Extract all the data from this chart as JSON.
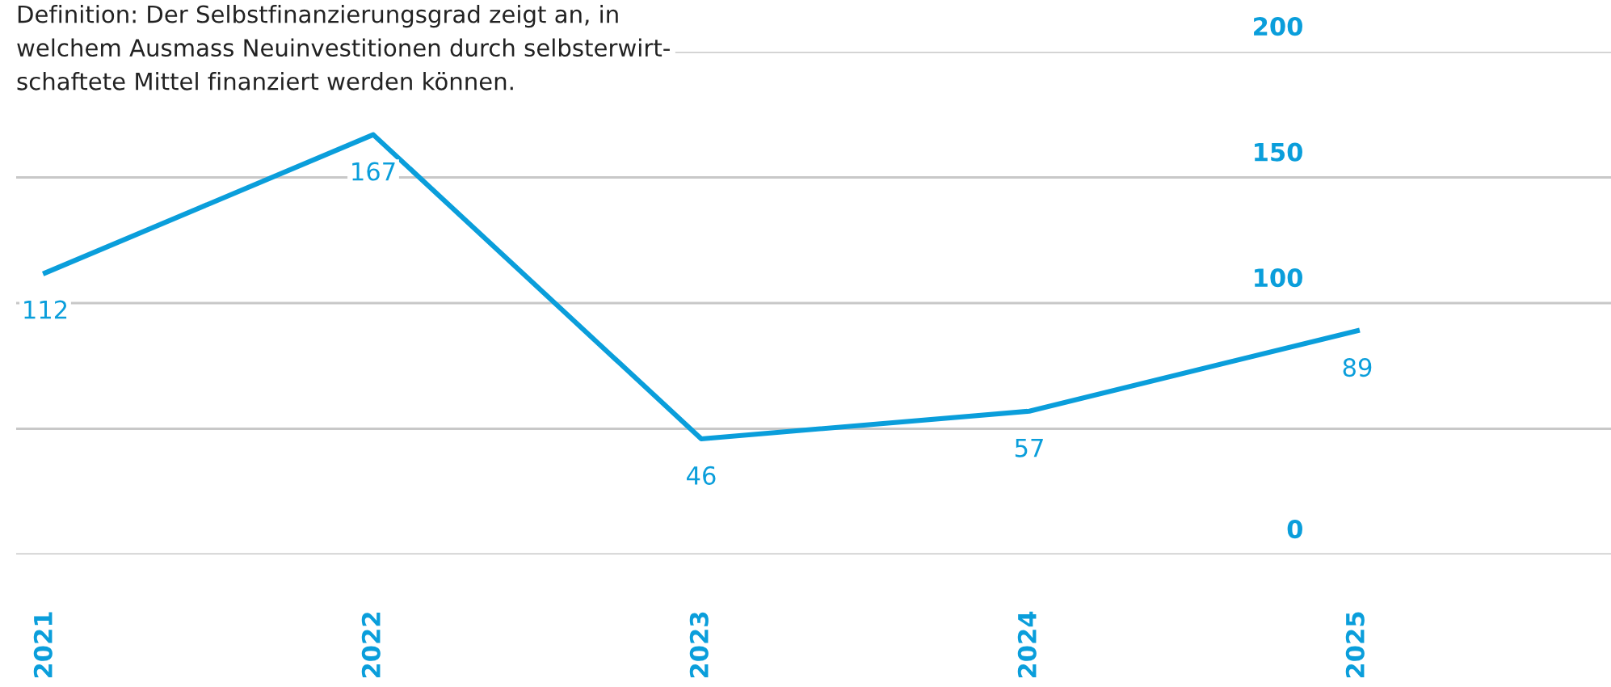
{
  "chart_data": {
    "type": "line",
    "categories": [
      "2021",
      "2022",
      "2023",
      "2024",
      "2025"
    ],
    "series": [
      {
        "color": "#0a9edb",
        "values": [
          112,
          167,
          46,
          57,
          89
        ]
      }
    ],
    "ylim": [
      0,
      200
    ],
    "yticks": [
      0,
      {
        "value": 50,
        "label": null
      },
      100,
      150,
      200
    ],
    "grid": "y",
    "data_labels": true,
    "marker": "none",
    "line_style": "solid",
    "annotations": [
      "Definition: Der Selbstfinanzierungsgrad zeigt an, in\nwelchem Ausmass Neuinvestitionen durch selbsterwirt-\nschaftete Mittel finanziert werden können."
    ]
  }
}
